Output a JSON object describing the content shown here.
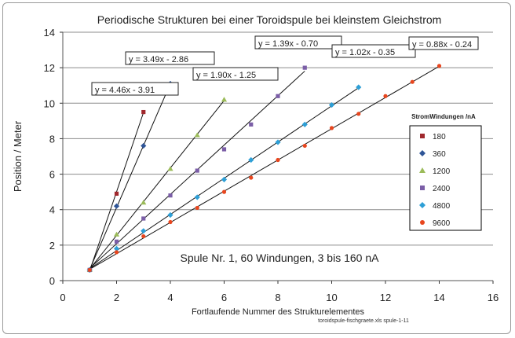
{
  "chart_data": {
    "type": "scatter",
    "title": "Periodische Strukturen bei einer Toroidspule bei kleinstem Gleichstrom",
    "xlabel": "Fortlaufende Nummer des Strukturelementes",
    "ylabel": "Position / Meter",
    "xlim": [
      0,
      16
    ],
    "ylim": [
      0,
      14
    ],
    "xticks": [
      "0",
      "2",
      "4",
      "6",
      "8",
      "10",
      "12",
      "14",
      "16"
    ],
    "yticks": [
      "0",
      "2",
      "4",
      "6",
      "8",
      "10",
      "12",
      "14"
    ],
    "grid": "horizontal",
    "legend": {
      "title": "StromWindungen /nA",
      "placement": "right"
    },
    "annotation": "Spule Nr. 1, 60 Windungen, 3 bis 160 nA",
    "footnote": "toroidspule-fischgraete.xls spule-1-11",
    "series": [
      {
        "name": "180",
        "color": "#a0282d",
        "marker": "square",
        "x": [
          1,
          2,
          3
        ],
        "y": [
          0.6,
          4.9,
          9.5
        ],
        "trendline": {
          "label": "y = 4.46x - 3.91",
          "slope": 4.46,
          "intercept": -3.91,
          "x": [
            1,
            3
          ]
        }
      },
      {
        "name": "360",
        "color": "#2f5597",
        "marker": "diamond",
        "x": [
          1,
          2,
          3,
          4
        ],
        "y": [
          0.6,
          4.2,
          7.6,
          11.1
        ],
        "trendline": {
          "label": "y = 3.49x - 2.86",
          "slope": 3.49,
          "intercept": -2.86,
          "x": [
            1,
            4
          ]
        }
      },
      {
        "name": "1200",
        "color": "#9bbb59",
        "marker": "triangle",
        "x": [
          1,
          2,
          3,
          4,
          5,
          6
        ],
        "y": [
          0.6,
          2.6,
          4.4,
          6.3,
          8.2,
          10.2
        ],
        "trendline": {
          "label": "y = 1.90x - 1.25",
          "slope": 1.9,
          "intercept": -1.25,
          "x": [
            1,
            6
          ]
        }
      },
      {
        "name": "2400",
        "color": "#7b5ea7",
        "marker": "square",
        "x": [
          1,
          2,
          3,
          4,
          5,
          6,
          7,
          8,
          9
        ],
        "y": [
          0.6,
          2.2,
          3.5,
          4.8,
          6.2,
          7.4,
          8.8,
          10.4,
          12.0
        ],
        "trendline": {
          "label": "y = 1.39x - 0.70",
          "slope": 1.39,
          "intercept": -0.7,
          "x": [
            1,
            9
          ]
        }
      },
      {
        "name": "4800",
        "color": "#2e9fd6",
        "marker": "diamond",
        "x": [
          1,
          2,
          3,
          4,
          5,
          6,
          7,
          8,
          9,
          10,
          11
        ],
        "y": [
          0.6,
          1.8,
          2.8,
          3.7,
          4.7,
          5.7,
          6.8,
          7.8,
          8.8,
          9.9,
          10.9
        ],
        "trendline": {
          "label": "y = 1.02x - 0.35",
          "slope": 1.02,
          "intercept": -0.35,
          "x": [
            1,
            11
          ]
        }
      },
      {
        "name": "9600",
        "color": "#e8461e",
        "marker": "circle",
        "x": [
          1,
          2,
          3,
          4,
          5,
          6,
          7,
          8,
          9,
          10,
          11,
          12,
          13,
          14
        ],
        "y": [
          0.6,
          1.6,
          2.5,
          3.3,
          4.1,
          5.0,
          5.8,
          6.8,
          7.6,
          8.6,
          9.4,
          10.4,
          11.2,
          12.1
        ],
        "trendline": {
          "label": "y = 0.88x - 0.24",
          "slope": 0.88,
          "intercept": -0.24,
          "x": [
            1,
            14
          ]
        }
      }
    ]
  }
}
